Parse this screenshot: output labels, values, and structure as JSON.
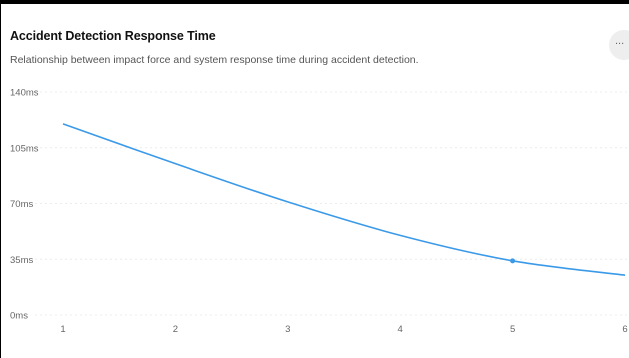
{
  "header": {
    "title": "Accident Detection Response Time",
    "subtitle": "Relationship between impact force and system response time during accident detection.",
    "more_label": "..."
  },
  "chart_data": {
    "type": "line",
    "title": "Accident Detection Response Time",
    "subtitle": "Relationship between impact force and system response time during accident detection.",
    "xlabel": "",
    "ylabel": "",
    "x": [
      1,
      2,
      3,
      4,
      5,
      6
    ],
    "xlim": [
      1,
      6
    ],
    "ylim": [
      0,
      140
    ],
    "y_ticks": [
      0,
      35,
      70,
      105,
      140
    ],
    "y_tick_labels": [
      "0ms",
      "35ms",
      "70ms",
      "105ms",
      "140ms"
    ],
    "x_tick_labels": [
      "1",
      "2",
      "3",
      "4",
      "5",
      "6"
    ],
    "series": [
      {
        "values": [
          120,
          95,
          71,
          50,
          34,
          25
        ],
        "color": "#3b9ae8"
      }
    ],
    "highlight_point_index": 4,
    "grid": true,
    "legend": "none"
  },
  "colors": {
    "line": "#3b9ae8",
    "grid": "#ececec",
    "card": "#ffffff",
    "frame": "#000000"
  }
}
